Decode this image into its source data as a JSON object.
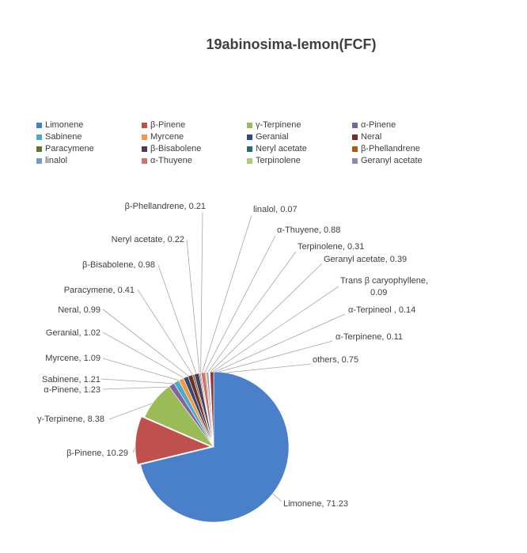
{
  "chart_data": {
    "type": "pie",
    "title": "19abinosima-lemon(FCF)",
    "legend_position": "top",
    "slices": [
      {
        "name": "Limonene",
        "value": 71.23,
        "color": "#4a7fc9",
        "label": "Limonene, 71.23"
      },
      {
        "name": "β-Pinene",
        "value": 10.29,
        "color": "#c0504d",
        "label": "β-Pinene, 10.29"
      },
      {
        "name": "γ-Terpinene",
        "value": 8.38,
        "color": "#9bbb59",
        "label": "γ-Terpinene, 8.38"
      },
      {
        "name": "α-Pinene",
        "value": 1.23,
        "color": "#8064a2",
        "label": "α-Pinene, 1.23"
      },
      {
        "name": "Sabinene",
        "value": 1.21,
        "color": "#4bacc6",
        "label": "Sabinene, 1.21"
      },
      {
        "name": "Myrcene",
        "value": 1.09,
        "color": "#f79646",
        "label": "Myrcene, 1.09"
      },
      {
        "name": "Geranial",
        "value": 1.02,
        "color": "#2c4d75",
        "label": "Geranial, 1.02"
      },
      {
        "name": "Neral",
        "value": 0.99,
        "color": "#772c2a",
        "label": "Neral, 0.99"
      },
      {
        "name": "Paracymene",
        "value": 0.41,
        "color": "#5f7530",
        "label": "Paracymene, 0.41"
      },
      {
        "name": "β-Bisabolene",
        "value": 0.98,
        "color": "#4d3b62",
        "label": "β-Bisabolene, 0.98"
      },
      {
        "name": "Neryl acetate",
        "value": 0.22,
        "color": "#276a7c",
        "label": "Neryl acetate, 0.22"
      },
      {
        "name": "β-Phellandrene",
        "value": 0.21,
        "color": "#b65708",
        "label": "β-Phellandrene, 0.21"
      },
      {
        "name": "linalol",
        "value": 0.07,
        "color": "#729aca",
        "label": "linalol, 0.07"
      },
      {
        "name": "α-Thuyene",
        "value": 0.88,
        "color": "#cd7371",
        "label": "α-Thuyene, 0.88"
      },
      {
        "name": "Terpinolene",
        "value": 0.31,
        "color": "#afc97a",
        "label": "Terpinolene, 0.31"
      },
      {
        "name": "Geranyl acetate",
        "value": 0.39,
        "color": "#9983b5",
        "label": "Geranyl acetate, 0.39"
      },
      {
        "name": "Trans β caryophyllene",
        "value": 0.09,
        "color": "#6fbdd1",
        "label_lines": [
          "Trans β caryophyllene,",
          "0.09"
        ]
      },
      {
        "name": "α-Terpineol",
        "value": 0.14,
        "color": "#f9ab6b",
        "label": "α-Terpineol , 0.14"
      },
      {
        "name": "α-Terpinene",
        "value": 0.11,
        "color": "#3a5f8f",
        "label": "α-Terpinene, 0.11"
      },
      {
        "name": "others",
        "value": 0.75,
        "color": "#903634",
        "label": "others, 0.75"
      }
    ],
    "legend_entries": [
      {
        "name": "Limonene",
        "color": "#4a7fc9"
      },
      {
        "name": "β-Pinene",
        "color": "#c0504d"
      },
      {
        "name": "γ-Terpinene",
        "color": "#9bbb59"
      },
      {
        "name": "α-Pinene",
        "color": "#8064a2"
      },
      {
        "name": "Sabinene",
        "color": "#4bacc6"
      },
      {
        "name": "Myrcene",
        "color": "#f79646"
      },
      {
        "name": "Geranial",
        "color": "#2c4d75"
      },
      {
        "name": "Neral",
        "color": "#772c2a"
      },
      {
        "name": "Paracymene",
        "color": "#5f7530"
      },
      {
        "name": "β-Bisabolene",
        "color": "#4d3b62"
      },
      {
        "name": "Neryl acetate",
        "color": "#276a7c"
      },
      {
        "name": "β-Phellandrene",
        "color": "#b65708"
      },
      {
        "name": "linalol",
        "color": "#729aca"
      },
      {
        "name": "α-Thuyene",
        "color": "#cd7371"
      },
      {
        "name": "Terpinolene",
        "color": "#afc97a"
      },
      {
        "name": "Geranyl acetate",
        "color": "#9983b5"
      }
    ]
  }
}
